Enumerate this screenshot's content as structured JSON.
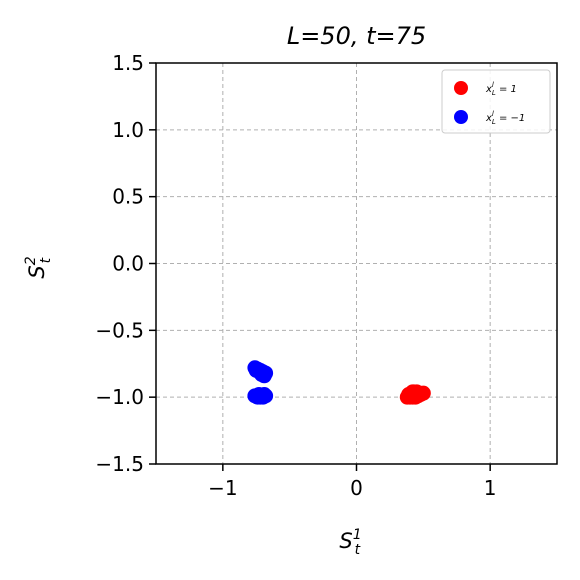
{
  "chart_data": {
    "type": "scatter",
    "title": "L=50, t=75",
    "xlabel": "S",
    "xlabel_sup": "1",
    "xlabel_sub": "t",
    "ylabel": "S",
    "ylabel_sup": "2",
    "ylabel_sub": "t",
    "xlim": [
      -1.5,
      1.5
    ],
    "ylim": [
      -1.5,
      1.5
    ],
    "xticks": [
      -1,
      0,
      1
    ],
    "xtick_labels": [
      "−1",
      "0",
      "1"
    ],
    "yticks": [
      -1.5,
      -1.0,
      -0.5,
      0.0,
      0.5,
      1.0,
      1.5
    ],
    "ytick_labels": [
      "−1.5",
      "−1.0",
      "−0.5",
      "0.0",
      "0.5",
      "1.0",
      "1.5"
    ],
    "grid": true,
    "legend_position": "top-right",
    "series": [
      {
        "name": "x_L^l = 1",
        "legend_label": "x",
        "legend_sup": "l",
        "legend_sub": "L",
        "legend_rest": " = 1",
        "color": "#ff0000",
        "points": [
          [
            0.38,
            -1.0
          ],
          [
            0.4,
            -1.0
          ],
          [
            0.42,
            -1.0
          ],
          [
            0.44,
            -1.0
          ],
          [
            0.46,
            -0.99
          ],
          [
            0.48,
            -0.98
          ],
          [
            0.39,
            -0.98
          ],
          [
            0.41,
            -0.97
          ],
          [
            0.43,
            -0.96
          ],
          [
            0.45,
            -0.96
          ],
          [
            0.47,
            -0.97
          ],
          [
            0.5,
            -0.97
          ],
          [
            0.4,
            -0.99
          ],
          [
            0.44,
            -0.98
          ],
          [
            0.42,
            -0.96
          ]
        ]
      },
      {
        "name": "x_L^l = -1",
        "legend_label": "x",
        "legend_sup": "l",
        "legend_sub": "L",
        "legend_rest": " = −1",
        "color": "#0000ff",
        "points": [
          [
            -0.76,
            -0.78
          ],
          [
            -0.74,
            -0.79
          ],
          [
            -0.72,
            -0.8
          ],
          [
            -0.7,
            -0.81
          ],
          [
            -0.68,
            -0.82
          ],
          [
            -0.75,
            -0.8
          ],
          [
            -0.71,
            -0.83
          ],
          [
            -0.69,
            -0.84
          ],
          [
            -0.76,
            -0.99
          ],
          [
            -0.74,
            -1.0
          ],
          [
            -0.72,
            -1.0
          ],
          [
            -0.7,
            -1.0
          ],
          [
            -0.68,
            -0.99
          ],
          [
            -0.73,
            -0.98
          ],
          [
            -0.69,
            -0.98
          ]
        ]
      }
    ]
  }
}
